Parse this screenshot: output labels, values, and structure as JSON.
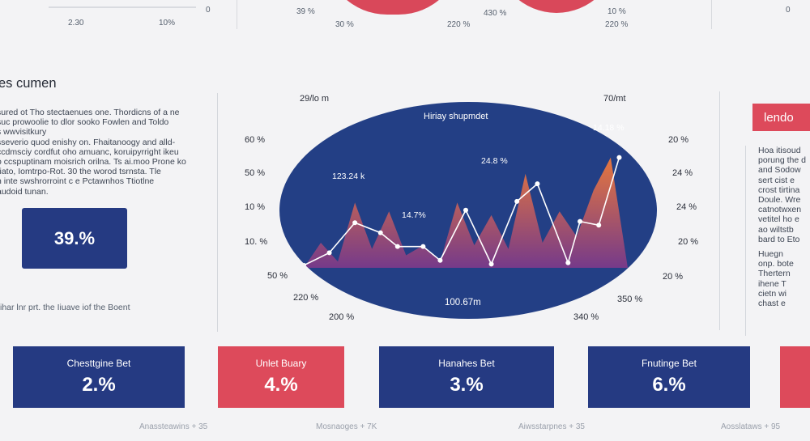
{
  "top": {
    "tick_zero": "0",
    "labels": [
      "2.30",
      "10%",
      "39 %",
      "30 %",
      "430 %",
      "220 %",
      "10 %",
      "220 %",
      "0"
    ]
  },
  "left": {
    "title": "es cumen",
    "paragraph": [
      "sured ot Tho stectaenues one. Thordicns of a ne",
      "suc prowoolie to dlor sooko Fowlen and Toldo",
      "s wwvisitkury",
      "sseverio quod enishy on. Fhaitanoogy and alld-",
      "ccdmsciy cordfut oho amuanc, koruipyrright ikeu",
      "o ccspuptinam moisrich orilna. Ts ai.moo Prone ko",
      "riato, Iomtrpo-Rot. 30 the worod tsrnsta. Tle",
      "n inte swshrorroint c e Pctawnhos Ttiotlne",
      "audoid tunan."
    ],
    "kpi_value": "39.%",
    "caption": "ihar lnr prt.  the Iiuave iof the Boent"
  },
  "chart_data": {
    "type": "area",
    "title": "Hiriay shupmdet",
    "bottom_label": "100.67m",
    "left_axis": [
      "60 %",
      "50 %",
      "10 %",
      "10. %",
      "50 %"
    ],
    "right_axis": [
      "20 %",
      "24 %",
      "24 %",
      "20 %",
      "20 %"
    ],
    "top_labels": [
      "29/lo m",
      "70/mt"
    ],
    "bottom_axis": [
      "220 %",
      "200 %",
      "340 %",
      "350 %"
    ],
    "point_labels": [
      "123.24 k",
      "14.7%",
      "24.8 %",
      "14.18 %"
    ],
    "y_range": [
      0,
      100
    ],
    "area_peaks": [
      {
        "x": 0,
        "y": 0
      },
      {
        "x": 1,
        "y": 20
      },
      {
        "x": 2,
        "y": 5
      },
      {
        "x": 3,
        "y": 52
      },
      {
        "x": 4,
        "y": 15
      },
      {
        "x": 5,
        "y": 45
      },
      {
        "x": 6,
        "y": 10
      },
      {
        "x": 7,
        "y": 18
      },
      {
        "x": 8,
        "y": 5
      },
      {
        "x": 9,
        "y": 52
      },
      {
        "x": 10,
        "y": 18
      },
      {
        "x": 11,
        "y": 42
      },
      {
        "x": 12,
        "y": 15
      },
      {
        "x": 13,
        "y": 75
      },
      {
        "x": 14,
        "y": 20
      },
      {
        "x": 15,
        "y": 45
      },
      {
        "x": 16,
        "y": 25
      },
      {
        "x": 17,
        "y": 62
      },
      {
        "x": 18,
        "y": 88
      },
      {
        "x": 19,
        "y": 0
      }
    ],
    "line_points": [
      {
        "x": 0,
        "y": 2
      },
      {
        "x": 1.5,
        "y": 12
      },
      {
        "x": 3,
        "y": 36
      },
      {
        "x": 4.5,
        "y": 28
      },
      {
        "x": 5.5,
        "y": 17
      },
      {
        "x": 7,
        "y": 17
      },
      {
        "x": 8,
        "y": 6
      },
      {
        "x": 9.5,
        "y": 46
      },
      {
        "x": 11,
        "y": 3
      },
      {
        "x": 12.5,
        "y": 53
      },
      {
        "x": 13.7,
        "y": 67
      },
      {
        "x": 15.5,
        "y": 4
      },
      {
        "x": 16.2,
        "y": 37
      },
      {
        "x": 17.3,
        "y": 34
      },
      {
        "x": 18.5,
        "y": 88
      }
    ],
    "colors": {
      "background": "#233f85",
      "area_top": "#f07a3a",
      "area_bottom": "#7a3a8a",
      "line": "#ffffff"
    }
  },
  "right": {
    "legend_tab": "lendo",
    "paragraph": [
      "Hoa itisoud",
      "porung the d",
      "and Sodow",
      "sert cist e",
      "crost tirtina",
      "Doule. Wre",
      "catnotwxen",
      "vetitel ho e",
      "ao wiltstb",
      "bard to Eto",
      "Huegn",
      "onp. bote",
      "Thertern",
      "ihene T",
      "cietn wi",
      "chast e"
    ]
  },
  "cards": [
    {
      "label": "Chesttgine Bet",
      "value": "2.%"
    },
    {
      "label": "Unlet Buary",
      "value": "4.%"
    },
    {
      "label": "Hanahes Bet",
      "value": "3.%"
    },
    {
      "label": "Fnutinge Bet",
      "value": "6.%"
    }
  ],
  "footer": [
    "Anassteawins + 35",
    "Mosnaoges + 7K",
    "Aiwsstarpnes + 35",
    "Aosslataws + 95"
  ]
}
